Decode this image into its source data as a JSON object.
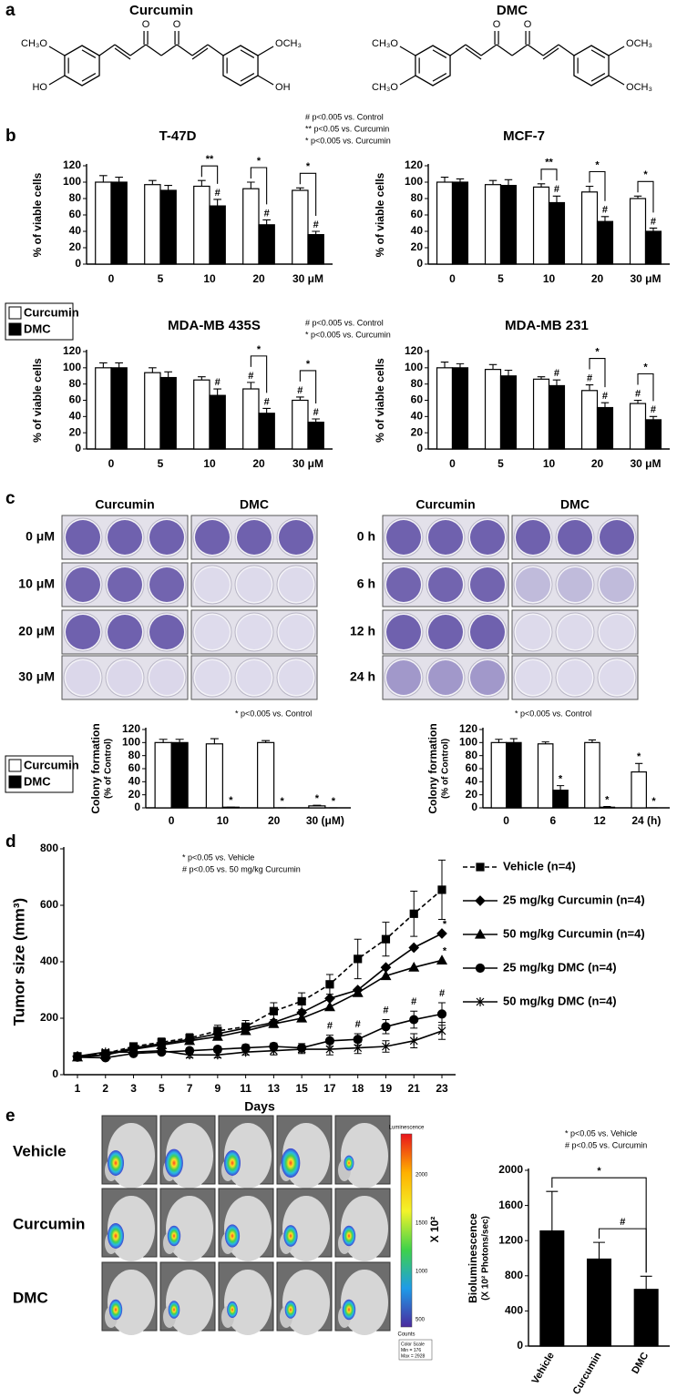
{
  "panel_labels": [
    "a",
    "b",
    "c",
    "d",
    "e"
  ],
  "structures": [
    {
      "name": "Curcumin",
      "labels": [
        "CH₃O",
        "HO",
        "O",
        "O",
        "OCH₃",
        "OH"
      ]
    },
    {
      "name": "DMC",
      "labels": [
        "CH₃O",
        "CH₃O",
        "O",
        "O",
        "OCH₃",
        "OCH₃"
      ]
    }
  ],
  "chart_data": [
    {
      "type": "bar",
      "title": "T-47D",
      "ylabel": "% of viable cells",
      "categories": [
        "0",
        "5",
        "10",
        "20",
        "30 μM"
      ],
      "ylim": [
        0,
        120
      ],
      "yticks": [
        0,
        20,
        40,
        60,
        80,
        100,
        120
      ],
      "notes": [
        "# p<0.005 vs. Control",
        "** p<0.05 vs. Curcumin",
        "* p<0.005 vs. Curcumin"
      ],
      "series": [
        {
          "color": "#ffffff",
          "values": [
            100,
            97,
            95,
            92,
            90
          ],
          "errors": [
            8,
            5,
            7,
            8,
            3
          ]
        },
        {
          "color": "#000000",
          "values": [
            100,
            90,
            71,
            48,
            36
          ],
          "errors": [
            6,
            6,
            8,
            6,
            4
          ],
          "marks": [
            null,
            null,
            "#",
            "#",
            "#"
          ]
        }
      ],
      "brackets": [
        null,
        null,
        "**",
        "*",
        "*"
      ]
    },
    {
      "type": "bar",
      "title": "MCF-7",
      "ylabel": "% of viable cells",
      "categories": [
        "0",
        "5",
        "10",
        "20",
        "30 μM"
      ],
      "ylim": [
        0,
        120
      ],
      "yticks": [
        0,
        20,
        40,
        60,
        80,
        100,
        120
      ],
      "series": [
        {
          "color": "#ffffff",
          "values": [
            100,
            97,
            94,
            88,
            80
          ],
          "errors": [
            6,
            5,
            4,
            7,
            3
          ]
        },
        {
          "color": "#000000",
          "values": [
            100,
            96,
            75,
            52,
            40
          ],
          "errors": [
            4,
            7,
            8,
            6,
            4
          ],
          "marks": [
            null,
            null,
            "#",
            "#",
            "#"
          ]
        }
      ],
      "brackets": [
        null,
        null,
        "**",
        "*",
        "*"
      ]
    },
    {
      "type": "bar",
      "title": "MDA-MB 435S",
      "ylabel": "% of viable cells",
      "categories": [
        "0",
        "5",
        "10",
        "20",
        "30 μM"
      ],
      "ylim": [
        0,
        120
      ],
      "yticks": [
        0,
        20,
        40,
        60,
        80,
        100,
        120
      ],
      "notes": [
        "# p<0.005 vs. Control",
        "* p<0.005 vs. Curcumin"
      ],
      "series": [
        {
          "name": "Curcumin",
          "color": "#ffffff",
          "values": [
            100,
            94,
            85,
            74,
            60
          ],
          "errors": [
            6,
            6,
            4,
            8,
            4
          ],
          "marks": [
            null,
            null,
            null,
            "#",
            "#"
          ]
        },
        {
          "name": "DMC",
          "color": "#000000",
          "values": [
            100,
            88,
            66,
            44,
            33
          ],
          "errors": [
            6,
            7,
            8,
            6,
            4
          ],
          "marks": [
            null,
            null,
            "#",
            "#",
            "#"
          ]
        }
      ],
      "brackets": [
        null,
        null,
        null,
        "*",
        "*"
      ]
    },
    {
      "type": "bar",
      "title": "MDA-MB 231",
      "ylabel": "% of viable cells",
      "categories": [
        "0",
        "5",
        "10",
        "20",
        "30 μM"
      ],
      "ylim": [
        0,
        120
      ],
      "yticks": [
        0,
        20,
        40,
        60,
        80,
        100,
        120
      ],
      "series": [
        {
          "color": "#ffffff",
          "values": [
            100,
            98,
            86,
            72,
            56
          ],
          "errors": [
            7,
            6,
            3,
            7,
            4
          ],
          "marks": [
            null,
            null,
            null,
            "#",
            "#"
          ]
        },
        {
          "color": "#000000",
          "values": [
            100,
            90,
            78,
            51,
            36
          ],
          "errors": [
            5,
            7,
            7,
            6,
            4
          ],
          "marks": [
            null,
            null,
            "#",
            "#",
            "#"
          ]
        }
      ],
      "brackets": [
        null,
        null,
        null,
        "*",
        "*"
      ]
    },
    {
      "type": "bar",
      "ylabel": [
        "Colony formation",
        "(% of Control)"
      ],
      "categories": [
        "0",
        "10",
        "20",
        "30 (μM)"
      ],
      "ylim": [
        0,
        120
      ],
      "yticks": [
        0,
        20,
        40,
        60,
        80,
        100,
        120
      ],
      "notes": [
        "* p<0.005 vs. Control"
      ],
      "series": [
        {
          "name": "Curcumin",
          "color": "#ffffff",
          "values": [
            100,
            98,
            100,
            3
          ],
          "errors": [
            5,
            8,
            3,
            1
          ],
          "marks": [
            null,
            null,
            null,
            "*"
          ]
        },
        {
          "name": "DMC",
          "color": "#000000",
          "values": [
            100,
            1,
            0,
            0
          ],
          "errors": [
            5,
            0,
            0,
            0
          ],
          "marks": [
            null,
            "*",
            "*",
            "*"
          ]
        }
      ]
    },
    {
      "type": "bar",
      "ylabel": [
        "Colony formation",
        "(% of Control)"
      ],
      "categories": [
        "0",
        "6",
        "12",
        "24 (h)"
      ],
      "ylim": [
        0,
        120
      ],
      "yticks": [
        0,
        20,
        40,
        60,
        80,
        100,
        120
      ],
      "notes": [
        "* p<0.005 vs. Control"
      ],
      "series": [
        {
          "color": "#ffffff",
          "values": [
            100,
            98,
            100,
            55
          ],
          "errors": [
            5,
            3,
            4,
            13
          ],
          "marks": [
            null,
            null,
            null,
            "*"
          ]
        },
        {
          "color": "#000000",
          "values": [
            100,
            27,
            1,
            0
          ],
          "errors": [
            6,
            7,
            1,
            0
          ],
          "marks": [
            null,
            "*",
            "*",
            "*"
          ]
        }
      ]
    },
    {
      "type": "line",
      "ylabel": "Tumor size (mm³)",
      "xlabel": "Days",
      "categories": [
        "1",
        "2",
        "3",
        "5",
        "7",
        "9",
        "11",
        "13",
        "15",
        "17",
        "18",
        "19",
        "21",
        "23"
      ],
      "ylim": [
        0,
        800
      ],
      "yticks": [
        0,
        200,
        400,
        600,
        800
      ],
      "notes": [
        "* p<0.05 vs. Vehicle",
        "# p<0.05 vs. 50 mg/kg Curcumin"
      ],
      "series": [
        {
          "name": "Vehicle (n=4)",
          "color": "#000000",
          "marker": "square",
          "dash": true,
          "values": [
            65,
            75,
            100,
            115,
            130,
            155,
            170,
            225,
            260,
            320,
            410,
            480,
            570,
            655
          ],
          "errors": [
            8,
            10,
            12,
            15,
            15,
            20,
            22,
            30,
            30,
            35,
            70,
            60,
            80,
            105
          ]
        },
        {
          "name": "25 mg/kg Curcumin (n=4)",
          "color": "#000000",
          "marker": "diamond",
          "dash": false,
          "values": [
            65,
            70,
            95,
            110,
            125,
            145,
            165,
            185,
            220,
            270,
            300,
            380,
            450,
            500
          ],
          "marks": [
            null,
            null,
            null,
            null,
            null,
            null,
            null,
            null,
            null,
            null,
            null,
            null,
            null,
            "*"
          ]
        },
        {
          "name": "50 mg/kg Curcumin (n=4)",
          "color": "#000000",
          "marker": "triangle",
          "dash": false,
          "values": [
            62,
            70,
            90,
            105,
            120,
            135,
            155,
            180,
            200,
            240,
            290,
            350,
            380,
            405
          ],
          "marks": [
            null,
            null,
            null,
            null,
            null,
            null,
            null,
            null,
            null,
            null,
            null,
            null,
            null,
            "*"
          ]
        },
        {
          "name": "25 mg/kg DMC (n=4)",
          "color": "#000000",
          "marker": "circle",
          "dash": false,
          "values": [
            62,
            60,
            75,
            80,
            85,
            90,
            95,
            100,
            95,
            120,
            125,
            170,
            195,
            215
          ],
          "errors": [
            5,
            5,
            8,
            8,
            10,
            10,
            12,
            12,
            15,
            20,
            20,
            25,
            30,
            40
          ],
          "marks": [
            null,
            null,
            null,
            null,
            null,
            null,
            null,
            null,
            null,
            "#",
            "#",
            "#",
            "#",
            "#"
          ]
        },
        {
          "name": "50 mg/kg DMC (n=4)",
          "color": "#000000",
          "marker": "x",
          "dash": false,
          "values": [
            65,
            80,
            80,
            85,
            70,
            70,
            80,
            85,
            90,
            90,
            95,
            100,
            120,
            155
          ],
          "errors": [
            5,
            5,
            8,
            8,
            10,
            10,
            10,
            15,
            15,
            20,
            20,
            20,
            25,
            30
          ]
        }
      ]
    },
    {
      "type": "bar",
      "ylabel": [
        "Bioluminescence",
        "(X 10² Photons/sec)"
      ],
      "categories": [
        "Vehicle",
        "Curcumin",
        "DMC"
      ],
      "values": [
        1310,
        990,
        645
      ],
      "errors": [
        450,
        190,
        150
      ],
      "color": "#000000",
      "ylim": [
        0,
        2000
      ],
      "yticks": [
        0,
        400,
        800,
        1200,
        1600,
        2000
      ],
      "notes": [
        "* p<0.05 vs. Vehicle",
        "# p<0.05 vs. Curcumin"
      ],
      "brackets": [
        "*",
        "#",
        null
      ]
    }
  ],
  "colony_images": {
    "dose": {
      "columns": [
        "Curcumin",
        "DMC"
      ],
      "rows": [
        "0 μM",
        "10 μM",
        "20 μM",
        "30 μM"
      ]
    },
    "time": {
      "columns": [
        "Curcumin",
        "DMC"
      ],
      "rows": [
        "0 h",
        "6 h",
        "12 h",
        "24 h"
      ]
    }
  },
  "bioluminescence_images": {
    "rows": [
      "Vehicle",
      "Curcumin",
      "DMC"
    ],
    "colorbar": {
      "title": "Luminescence",
      "ticks": [
        2000,
        1500,
        1000,
        500
      ],
      "unit": "X 10²",
      "footer": "Counts",
      "scale": [
        "Color Scale",
        "Min = 176",
        "Max = 2928"
      ]
    }
  }
}
